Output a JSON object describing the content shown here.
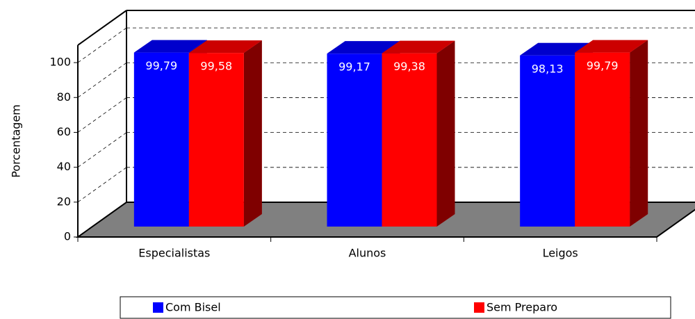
{
  "chart_data": {
    "type": "bar3d",
    "categories": [
      "Especialistas",
      "Alunos",
      "Leigos"
    ],
    "series": [
      {
        "name": "Com Bisel",
        "color": "#0000ff",
        "values": [
          99.79,
          99.17,
          98.13
        ],
        "value_labels": [
          "99,79",
          "99,17",
          "98,13"
        ]
      },
      {
        "name": "Sem Preparo",
        "color": "#ff0000",
        "values": [
          99.58,
          99.38,
          99.79
        ],
        "value_labels": [
          "99,58",
          "99,38",
          "99,79"
        ]
      }
    ],
    "y_label": "Porcentagem",
    "ylim": [
      0,
      110
    ],
    "yticks": [
      0,
      20,
      40,
      60,
      80,
      100
    ],
    "grid": true
  }
}
